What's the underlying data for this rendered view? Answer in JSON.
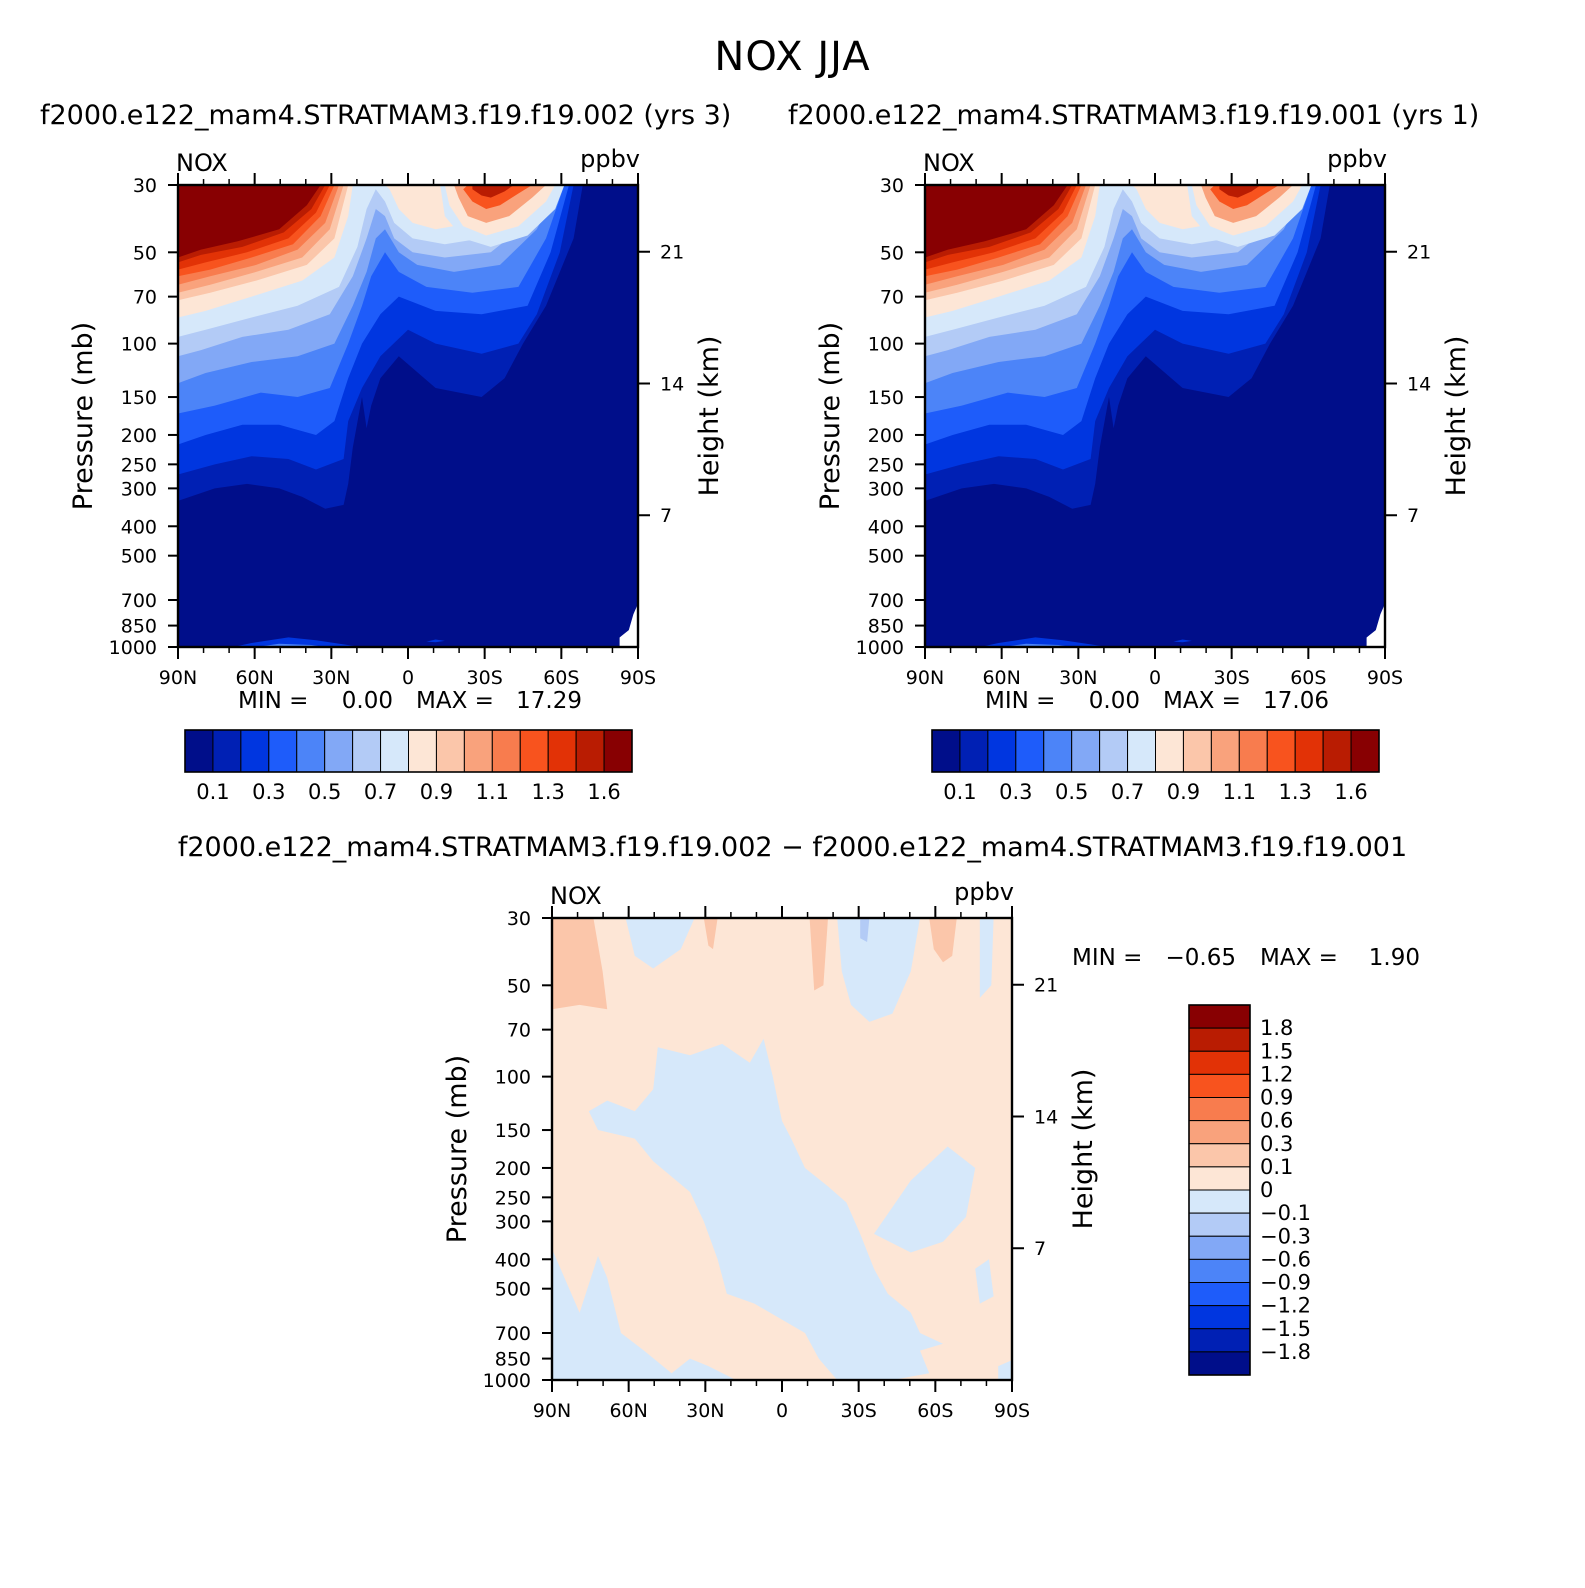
{
  "figure": {
    "title": "NOX JJA",
    "case1_title": "f2000.e122_mam4.STRATMAM3.f19.f19.002 (yrs 3)",
    "case2_title": "f2000.e122_mam4.STRATMAM3.f19.f19.001 (yrs 1)",
    "diff_title": "f2000.e122_mam4.STRATMAM3.f19.f19.002 − f2000.e122_mam4.STRATMAM3.f19.f19.001"
  },
  "chart_data": [
    {
      "type": "heatmap",
      "id": "case1",
      "variable": "NOX",
      "units": "ppbv",
      "xlabel": "",
      "ylabel": "Pressure (mb)",
      "y2label": "Height (km)",
      "x_ticks": [
        "90N",
        "60N",
        "30N",
        "0",
        "30S",
        "60S",
        "90S"
      ],
      "y_ticks": [
        30,
        50,
        70,
        100,
        150,
        200,
        250,
        300,
        400,
        500,
        700,
        850,
        1000
      ],
      "y2_ticks": [
        21,
        14,
        7
      ],
      "min_label": "MIN =",
      "min_value": "0.00",
      "max_label": "MAX =",
      "max_value": "17.29",
      "colorbar_labels": [
        "0.1",
        "0.3",
        "0.5",
        "0.7",
        "0.9",
        "1.1",
        "1.3",
        "1.6"
      ]
    },
    {
      "type": "heatmap",
      "id": "case2",
      "variable": "NOX",
      "units": "ppbv",
      "xlabel": "",
      "ylabel": "Pressure (mb)",
      "y2label": "Height (km)",
      "x_ticks": [
        "90N",
        "60N",
        "30N",
        "0",
        "30S",
        "60S",
        "90S"
      ],
      "y_ticks": [
        30,
        50,
        70,
        100,
        150,
        200,
        250,
        300,
        400,
        500,
        700,
        850,
        1000
      ],
      "y2_ticks": [
        21,
        14,
        7
      ],
      "min_label": "MIN =",
      "min_value": "0.00",
      "max_label": "MAX =",
      "max_value": "17.06",
      "colorbar_labels": [
        "0.1",
        "0.3",
        "0.5",
        "0.7",
        "0.9",
        "1.1",
        "1.3",
        "1.6"
      ]
    },
    {
      "type": "heatmap",
      "id": "diff",
      "variable": "NOX",
      "units": "ppbv",
      "xlabel": "",
      "ylabel": "Pressure (mb)",
      "y2label": "Height (km)",
      "x_ticks": [
        "90N",
        "60N",
        "30N",
        "0",
        "30S",
        "60S",
        "90S"
      ],
      "y_ticks": [
        30,
        50,
        70,
        100,
        150,
        200,
        250,
        300,
        400,
        500,
        700,
        850,
        1000
      ],
      "y2_ticks": [
        21,
        14,
        7
      ],
      "min_label": "MIN =",
      "min_value": "−0.65",
      "max_label": "MAX =",
      "max_value": "1.90",
      "colorbar_labels": [
        "1.8",
        "1.5",
        "1.2",
        "0.9",
        "0.6",
        "0.3",
        "0.1",
        "0",
        "−0.1",
        "−0.3",
        "−0.6",
        "−0.9",
        "−1.2",
        "−1.5",
        "−1.8"
      ]
    }
  ],
  "palette": {
    "colors": [
      "#000e8a",
      "#0020b4",
      "#0036e0",
      "#1e5cfa",
      "#4c84f8",
      "#82a8f6",
      "#b3cbf6",
      "#d6e8fa",
      "#fde6d6",
      "#fbc6aa",
      "#f9a27c",
      "#f87c4e",
      "#f8531e",
      "#e23206",
      "#b91c02",
      "#880002"
    ]
  }
}
